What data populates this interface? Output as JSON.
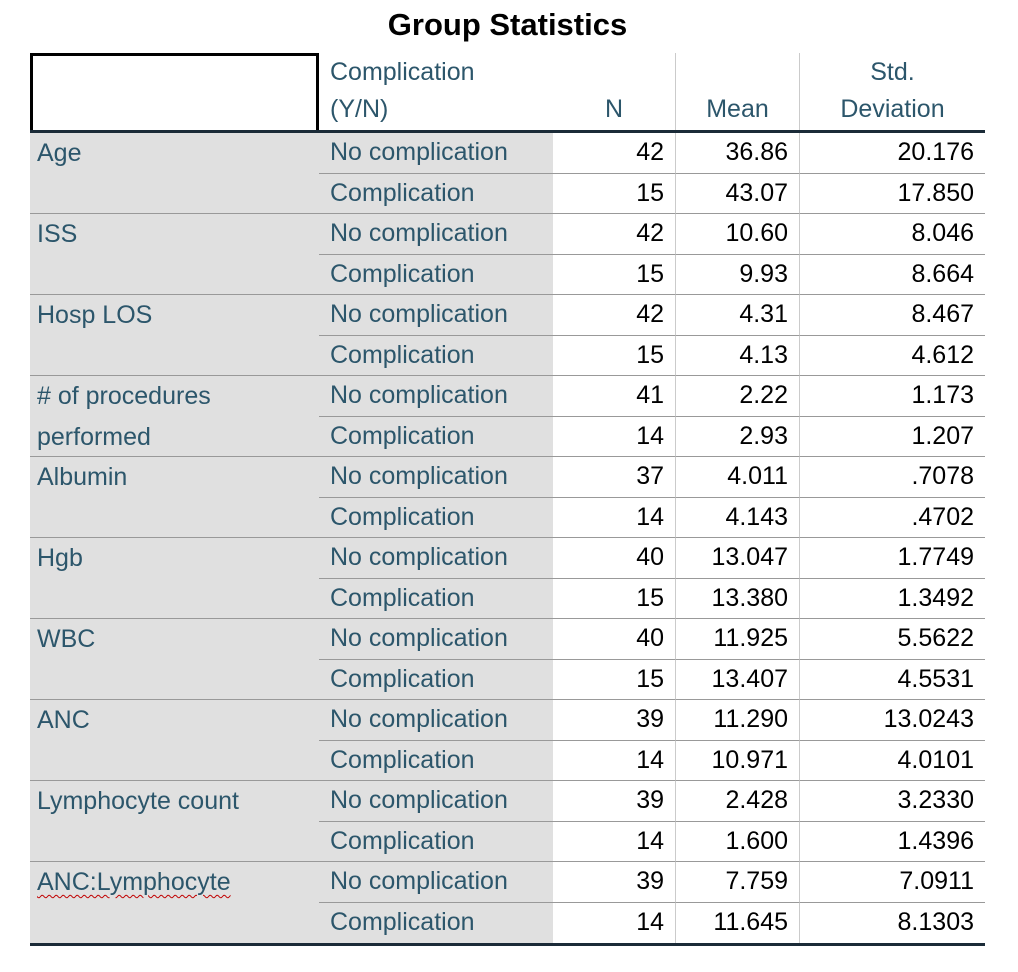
{
  "title": "Group Statistics",
  "columns": {
    "group": "Complication\n(Y/N)",
    "n": "N",
    "mean": "Mean",
    "std": "Std.\nDeviation"
  },
  "rows": [
    {
      "label": "Age",
      "sub": [
        {
          "group": "No complication",
          "n": "42",
          "mean": "36.86",
          "std": "20.176"
        },
        {
          "group": "Complication",
          "n": "15",
          "mean": "43.07",
          "std": "17.850"
        }
      ]
    },
    {
      "label": "ISS",
      "sub": [
        {
          "group": "No complication",
          "n": "42",
          "mean": "10.60",
          "std": "8.046"
        },
        {
          "group": "Complication",
          "n": "15",
          "mean": "9.93",
          "std": "8.664"
        }
      ]
    },
    {
      "label": "Hosp LOS",
      "sub": [
        {
          "group": "No complication",
          "n": "42",
          "mean": "4.31",
          "std": "8.467"
        },
        {
          "group": "Complication",
          "n": "15",
          "mean": "4.13",
          "std": "4.612"
        }
      ]
    },
    {
      "label": "# of procedures performed",
      "sub": [
        {
          "group": "No complication",
          "n": "41",
          "mean": "2.22",
          "std": "1.173"
        },
        {
          "group": "Complication",
          "n": "14",
          "mean": "2.93",
          "std": "1.207"
        }
      ]
    },
    {
      "label": "Albumin",
      "sub": [
        {
          "group": "No complication",
          "n": "37",
          "mean": "4.011",
          "std": ".7078"
        },
        {
          "group": "Complication",
          "n": "14",
          "mean": "4.143",
          "std": ".4702"
        }
      ]
    },
    {
      "label": "Hgb",
      "sub": [
        {
          "group": "No complication",
          "n": "40",
          "mean": "13.047",
          "std": "1.7749"
        },
        {
          "group": "Complication",
          "n": "15",
          "mean": "13.380",
          "std": "1.3492"
        }
      ]
    },
    {
      "label": "WBC",
      "sub": [
        {
          "group": "No complication",
          "n": "40",
          "mean": "11.925",
          "std": "5.5622"
        },
        {
          "group": "Complication",
          "n": "15",
          "mean": "13.407",
          "std": "4.5531"
        }
      ]
    },
    {
      "label": "ANC",
      "sub": [
        {
          "group": "No complication",
          "n": "39",
          "mean": "11.290",
          "std": "13.0243"
        },
        {
          "group": "Complication",
          "n": "14",
          "mean": "10.971",
          "std": "4.0101"
        }
      ]
    },
    {
      "label": "Lymphocyte count",
      "sub": [
        {
          "group": "No complication",
          "n": "39",
          "mean": "2.428",
          "std": "3.2330"
        },
        {
          "group": "Complication",
          "n": "14",
          "mean": "1.600",
          "std": "1.4396"
        }
      ]
    },
    {
      "label": "ANC:Lymphocyte",
      "sub": [
        {
          "group": "No complication",
          "n": "39",
          "mean": "7.759",
          "std": "7.0911"
        },
        {
          "group": "Complication",
          "n": "14",
          "mean": "11.645",
          "std": "8.1303"
        }
      ]
    }
  ],
  "colors": {
    "header_text": "#2c566b",
    "label_background": "#e0e0e0",
    "rule_dark": "#1b2b38",
    "rule_gray": "#999999",
    "rule_light": "#cbcbcb",
    "spellcheck_red": "#c00000"
  }
}
